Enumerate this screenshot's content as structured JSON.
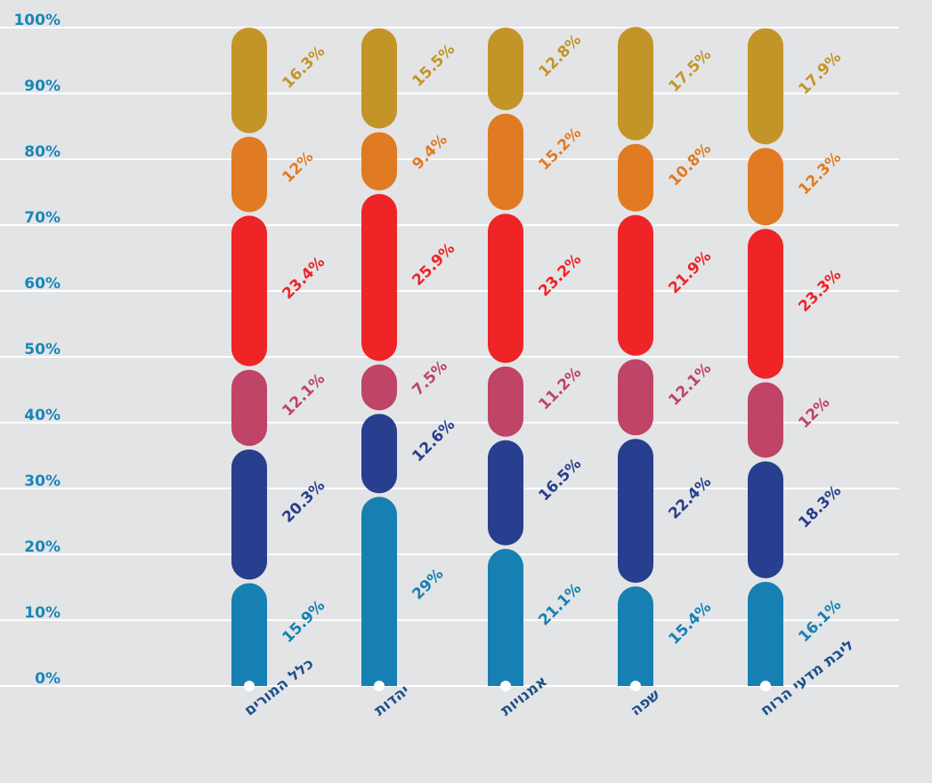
{
  "chart_data": {
    "type": "bar",
    "stacked": true,
    "orientation": "vertical",
    "ylim": [
      0,
      100
    ],
    "y_ticks": [
      "0%",
      "10%",
      "20%",
      "30%",
      "40%",
      "50%",
      "60%",
      "70%",
      "80%",
      "90%",
      "100%"
    ],
    "grid": true,
    "categories": [
      "כלל המורים",
      "יהדות",
      "אמנויות",
      "שפה",
      "ליבת מדעי הרוח"
    ],
    "series": [
      {
        "color": "#1680b3",
        "values": [
          15.9,
          29,
          21.1,
          15.4,
          16.1
        ],
        "labels": [
          "15.9%",
          "29%",
          "21.1%",
          "15.4%",
          "16.1%"
        ]
      },
      {
        "color": "#283e8e",
        "values": [
          20.3,
          12.6,
          16.5,
          22.4,
          18.3
        ],
        "labels": [
          "20.3%",
          "12.6%",
          "16.5%",
          "22.4%",
          "18.3%"
        ]
      },
      {
        "color": "#bf4465",
        "values": [
          12.1,
          7.5,
          11.2,
          12.1,
          12
        ],
        "labels": [
          "12.1%",
          "7.5%",
          "11.2%",
          "12.1%",
          "12%"
        ]
      },
      {
        "color": "#ee2426",
        "values": [
          23.4,
          25.9,
          23.2,
          21.9,
          23.3
        ],
        "labels": [
          "23.4%",
          "25.9%",
          "23.2%",
          "21.9%",
          "23.3%"
        ]
      },
      {
        "color": "#e07b23",
        "values": [
          12,
          9.4,
          15.2,
          10.8,
          12.3
        ],
        "labels": [
          "12%",
          "9.4%",
          "15.2%",
          "10.8%",
          "12.3%"
        ]
      },
      {
        "color": "#c39528",
        "values": [
          16.3,
          15.5,
          12.8,
          17.5,
          17.9
        ],
        "labels": [
          "16.3%",
          "15.5%",
          "12.8%",
          "17.5%",
          "17.9%"
        ]
      }
    ]
  },
  "colors": {
    "background": "#e3e4e6",
    "gridline": "#ffffff",
    "axis_text": "#1a86b8",
    "category_text": "#1f4f8c"
  }
}
